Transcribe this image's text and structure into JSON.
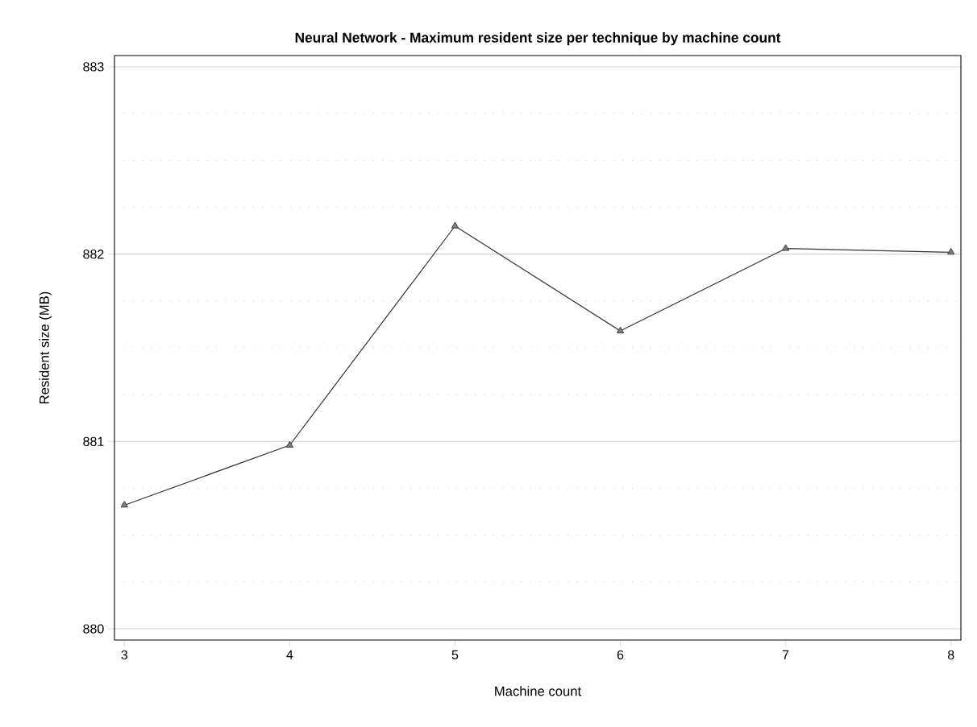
{
  "chart_data": {
    "type": "line",
    "title": "Neural Network - Maximum resident size per technique by machine count",
    "xlabel": "Machine count",
    "ylabel": "Resident size (MB)",
    "x": [
      3,
      4,
      5,
      6,
      7,
      8
    ],
    "series": [
      {
        "color": "#333333",
        "values": [
          880.66,
          880.98,
          882.15,
          881.59,
          882.03,
          882.01
        ]
      }
    ],
    "xlim": [
      2.94,
      8.06
    ],
    "ylim": [
      879.94,
      883.06
    ],
    "xticks": [
      3,
      4,
      5,
      6,
      7,
      8
    ],
    "yticks": [
      880,
      881,
      882,
      883
    ],
    "grid": "y",
    "marker": "triangle",
    "line_style": "solid"
  }
}
